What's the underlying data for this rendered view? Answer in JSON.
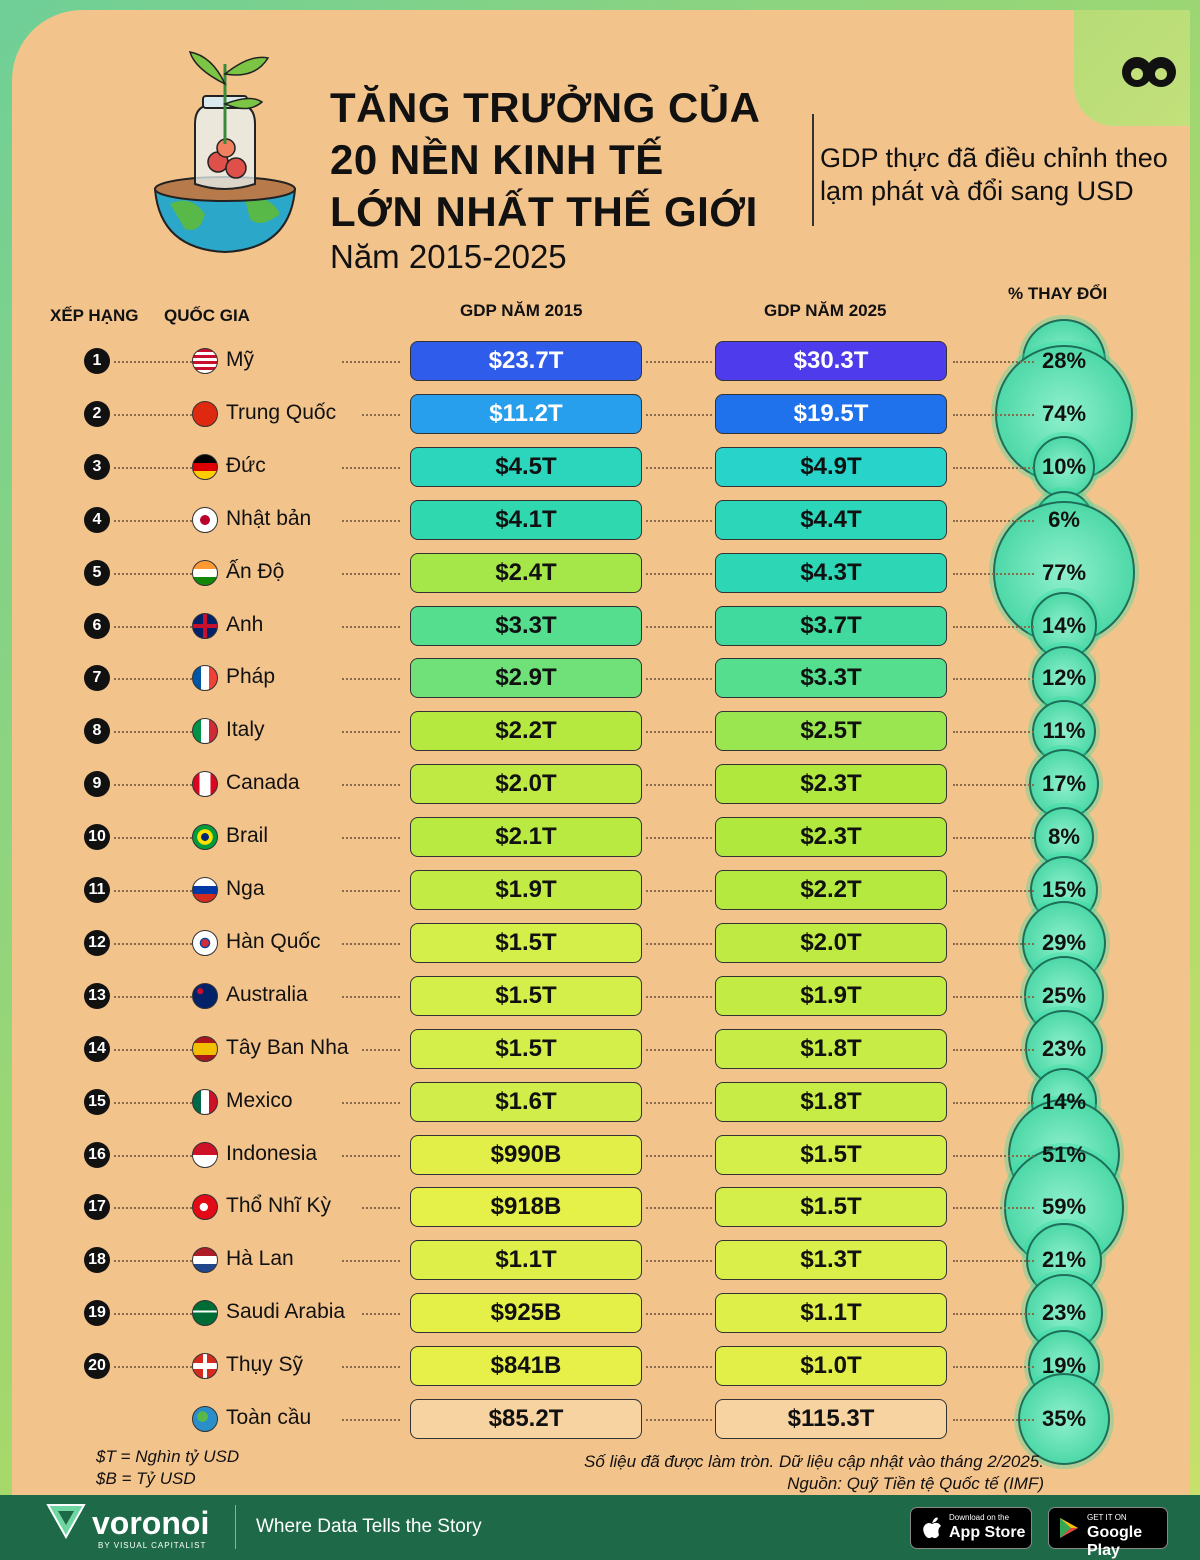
{
  "title": {
    "lines": [
      "TĂNG TRƯỞNG CỦA",
      "20 NỀN KINH TẾ",
      "LỚN NHẤT THẾ GIỚI"
    ],
    "years": "Năm 2015-2025",
    "subtitle": "GDP thực đã điều chỉnh theo lạm phát và đổi sang USD"
  },
  "headers": {
    "rank": "XẾP HẠNG",
    "country": "QUỐC GIA",
    "gdp2015": "GDP NĂM 2015",
    "gdp2025": "GDP NĂM 2025",
    "change": "% THAY ĐỔI"
  },
  "chart_data": {
    "type": "table",
    "columns": [
      "XẾP HẠNG",
      "QUỐC GIA",
      "GDP NĂM 2015",
      "GDP NĂM 2025",
      "% THAY ĐỔI"
    ],
    "rows": [
      {
        "rank": "1",
        "country": "Mỹ",
        "flag": "us-flag",
        "gdp2015": "$23.7T",
        "gdp2025": "$30.3T",
        "change": "28%",
        "change_value": 28
      },
      {
        "rank": "2",
        "country": "Trung Quốc",
        "flag": "china-flag",
        "gdp2015": "$11.2T",
        "gdp2025": "$19.5T",
        "change": "74%",
        "change_value": 74
      },
      {
        "rank": "3",
        "country": "Đức",
        "flag": "germany-flag",
        "gdp2015": "$4.5T",
        "gdp2025": "$4.9T",
        "change": "10%",
        "change_value": 10
      },
      {
        "rank": "4",
        "country": "Nhật bản",
        "flag": "japan-flag",
        "gdp2015": "$4.1T",
        "gdp2025": "$4.4T",
        "change": "6%",
        "change_value": 6
      },
      {
        "rank": "5",
        "country": "Ấn Độ",
        "flag": "india-flag",
        "gdp2015": "$2.4T",
        "gdp2025": "$4.3T",
        "change": "77%",
        "change_value": 77
      },
      {
        "rank": "6",
        "country": "Anh",
        "flag": "uk-flag",
        "gdp2015": "$3.3T",
        "gdp2025": "$3.7T",
        "change": "14%",
        "change_value": 14
      },
      {
        "rank": "7",
        "country": "Pháp",
        "flag": "france-flag",
        "gdp2015": "$2.9T",
        "gdp2025": "$3.3T",
        "change": "12%",
        "change_value": 12
      },
      {
        "rank": "8",
        "country": "Italy",
        "flag": "italy-flag",
        "gdp2015": "$2.2T",
        "gdp2025": "$2.5T",
        "change": "11%",
        "change_value": 11
      },
      {
        "rank": "9",
        "country": "Canada",
        "flag": "canada-flag",
        "gdp2015": "$2.0T",
        "gdp2025": "$2.3T",
        "change": "17%",
        "change_value": 17
      },
      {
        "rank": "10",
        "country": "Brail",
        "flag": "brazil-flag",
        "gdp2015": "$2.1T",
        "gdp2025": "$2.3T",
        "change": "8%",
        "change_value": 8
      },
      {
        "rank": "11",
        "country": "Nga",
        "flag": "russia-flag",
        "gdp2015": "$1.9T",
        "gdp2025": "$2.2T",
        "change": "15%",
        "change_value": 15
      },
      {
        "rank": "12",
        "country": "Hàn Quốc",
        "flag": "south-korea-flag",
        "gdp2015": "$1.5T",
        "gdp2025": "$2.0T",
        "change": "29%",
        "change_value": 29
      },
      {
        "rank": "13",
        "country": "Australia",
        "flag": "australia-flag",
        "gdp2015": "$1.5T",
        "gdp2025": "$1.9T",
        "change": "25%",
        "change_value": 25
      },
      {
        "rank": "14",
        "country": "Tây Ban Nha",
        "flag": "spain-flag",
        "gdp2015": "$1.5T",
        "gdp2025": "$1.8T",
        "change": "23%",
        "change_value": 23
      },
      {
        "rank": "15",
        "country": "Mexico",
        "flag": "mexico-flag",
        "gdp2015": "$1.6T",
        "gdp2025": "$1.8T",
        "change": "14%",
        "change_value": 14
      },
      {
        "rank": "16",
        "country": "Indonesia",
        "flag": "indonesia-flag",
        "gdp2015": "$990B",
        "gdp2025": "$1.5T",
        "change": "51%",
        "change_value": 51
      },
      {
        "rank": "17",
        "country": "Thổ Nhĩ Kỳ",
        "flag": "turkey-flag",
        "gdp2015": "$918B",
        "gdp2025": "$1.5T",
        "change": "59%",
        "change_value": 59
      },
      {
        "rank": "18",
        "country": "Hà Lan",
        "flag": "netherlands-flag",
        "gdp2015": "$1.1T",
        "gdp2025": "$1.3T",
        "change": "21%",
        "change_value": 21
      },
      {
        "rank": "19",
        "country": "Saudi Arabia",
        "flag": "saudi-arabia-flag",
        "gdp2015": "$925B",
        "gdp2025": "$1.1T",
        "change": "23%",
        "change_value": 23
      },
      {
        "rank": "20",
        "country": "Thụy Sỹ",
        "flag": "switzerland-flag",
        "gdp2015": "$841B",
        "gdp2025": "$1.0T",
        "change": "19%",
        "change_value": 19
      }
    ],
    "total": {
      "country": "Toàn cầu",
      "flag": "globe-icon",
      "gdp2015": "$85.2T",
      "gdp2025": "$115.3T",
      "change": "35%",
      "change_value": 35
    }
  },
  "notes": {
    "unit_t": "$T = Nghìn tỷ USD",
    "unit_b": "$B = Tỷ USD",
    "rounding": "Số liệu đã được làm tròn. Dữ liệu cập nhật vào tháng 2/2025.",
    "source": "Nguồn: Quỹ Tiền tệ Quốc tế (IMF)"
  },
  "footer": {
    "brand": "voronoi",
    "brand_sub": "BY VISUAL CAPITALIST",
    "tagline": "Where Data Tells the Story",
    "app_store_small": "Download on the",
    "app_store_big": "App Store",
    "google_small": "GET IT ON",
    "google_big": "Google Play"
  }
}
